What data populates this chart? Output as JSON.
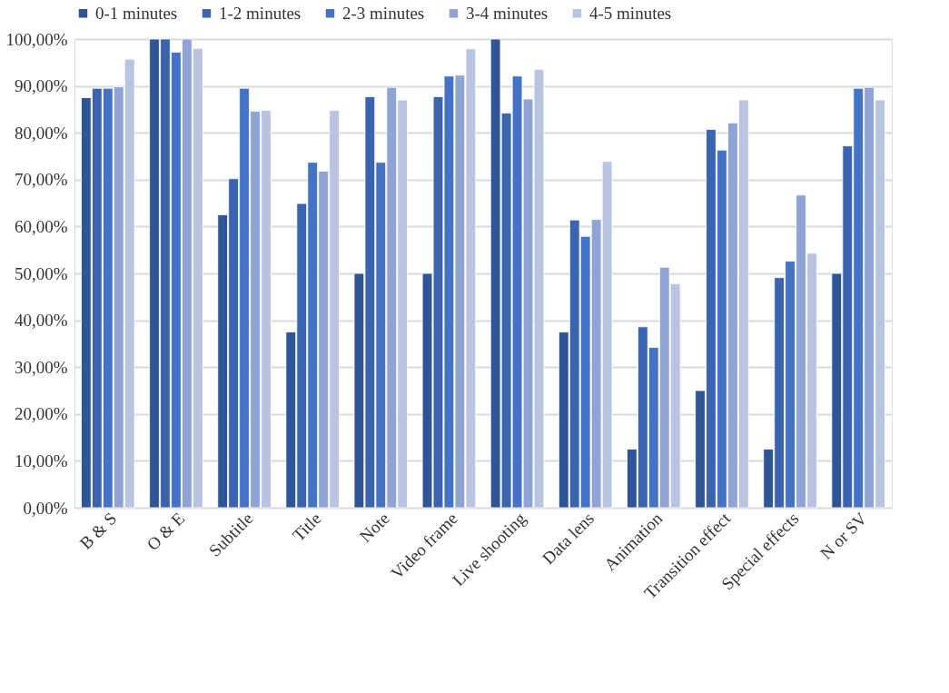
{
  "chart_data": {
    "type": "bar",
    "categories": [
      "B & S",
      "O & E",
      "Subtitle",
      "Title",
      "Note",
      "Video frame",
      "Live shooting",
      "Data lens",
      "Animation",
      "Transition effect",
      "Special effects",
      "N or SV"
    ],
    "series": [
      {
        "name": "0-1 minutes",
        "color": "#2f5597",
        "values": [
          87.5,
          100,
          62.5,
          37.5,
          50,
          50,
          100,
          37.5,
          12.5,
          25,
          12.5,
          50
        ]
      },
      {
        "name": "1-2 minutes",
        "color": "#3a64ad",
        "values": [
          89.5,
          100,
          70.2,
          64.9,
          87.7,
          87.7,
          84.2,
          61.4,
          38.6,
          80.7,
          49.1,
          77.2
        ]
      },
      {
        "name": "2-3 minutes",
        "color": "#4472c4",
        "values": [
          89.5,
          97.2,
          89.5,
          73.7,
          73.7,
          92.1,
          92.1,
          57.9,
          34.2,
          76.3,
          52.6,
          89.5
        ]
      },
      {
        "name": "3-4 minutes",
        "color": "#8fa4d4",
        "values": [
          89.8,
          100,
          84.6,
          71.8,
          89.7,
          92.3,
          87.2,
          61.5,
          51.3,
          82.1,
          66.7,
          89.7
        ]
      },
      {
        "name": "4-5 minutes",
        "color": "#b9c3e2",
        "values": [
          95.7,
          98,
          84.8,
          84.8,
          87,
          97.9,
          93.5,
          73.9,
          47.8,
          87,
          54.3,
          87
        ]
      }
    ],
    "ylim": [
      0,
      100
    ],
    "yticks": [
      {
        "value": 0,
        "label": "0,00%"
      },
      {
        "value": 10,
        "label": "10,00%"
      },
      {
        "value": 20,
        "label": "20,00%"
      },
      {
        "value": 30,
        "label": "30,00%"
      },
      {
        "value": 40,
        "label": "40,00%"
      },
      {
        "value": 50,
        "label": "50,00%"
      },
      {
        "value": 60,
        "label": "60,00%"
      },
      {
        "value": 70,
        "label": "70,00%"
      },
      {
        "value": 80,
        "label": "80,00%"
      },
      {
        "value": 90,
        "label": "90,00%"
      },
      {
        "value": 100,
        "label": "100,00%"
      }
    ],
    "grid": "y",
    "legend": "top"
  }
}
